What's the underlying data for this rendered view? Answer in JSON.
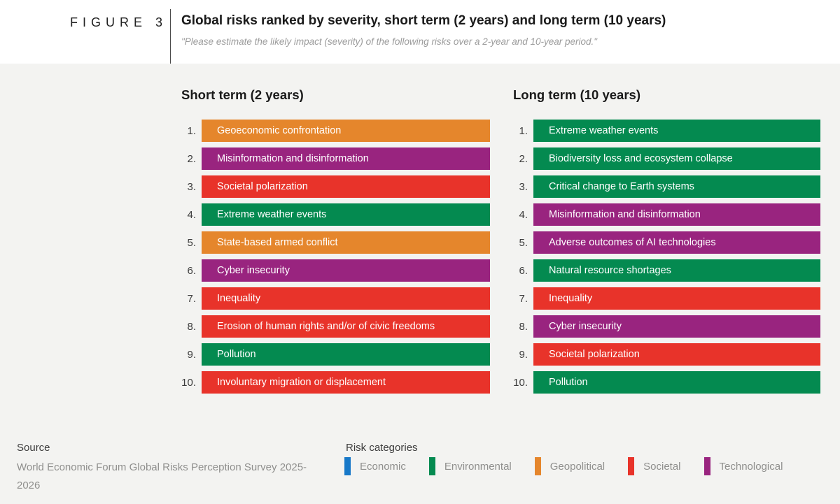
{
  "figure": {
    "label": "FIGURE 3",
    "title": "Global risks ranked by severity, short term (2 years) and long term (10 years)",
    "subtitle": "\"Please estimate the likely impact (severity) of the following risks over a 2-year and 10-year period.\""
  },
  "colors": {
    "economic": "#1778C8",
    "environmental": "#048A50",
    "geopolitical": "#E5862C",
    "societal": "#E8332A",
    "technological": "#99247F",
    "background": "#F3F3F1"
  },
  "chart_data": {
    "type": "bar",
    "title": "Global risks ranked by severity, short term (2 years) and long term (10 years)",
    "subtitle": "\"Please estimate the likely impact (severity) of the following risks over a 2-year and 10-year period.\"",
    "legend_position": "bottom",
    "columns": [
      {
        "header": "Short term (2 years)",
        "items": [
          {
            "rank": 1,
            "label": "Geoeconomic confrontation",
            "category": "geopolitical"
          },
          {
            "rank": 2,
            "label": "Misinformation and disinformation",
            "category": "technological"
          },
          {
            "rank": 3,
            "label": "Societal polarization",
            "category": "societal"
          },
          {
            "rank": 4,
            "label": "Extreme weather events",
            "category": "environmental"
          },
          {
            "rank": 5,
            "label": "State-based armed conflict",
            "category": "geopolitical"
          },
          {
            "rank": 6,
            "label": "Cyber insecurity",
            "category": "technological"
          },
          {
            "rank": 7,
            "label": "Inequality",
            "category": "societal"
          },
          {
            "rank": 8,
            "label": "Erosion of human rights and/or of civic freedoms",
            "category": "societal"
          },
          {
            "rank": 9,
            "label": "Pollution",
            "category": "environmental"
          },
          {
            "rank": 10,
            "label": "Involuntary migration or displacement",
            "category": "societal"
          }
        ]
      },
      {
        "header": "Long term (10 years)",
        "items": [
          {
            "rank": 1,
            "label": "Extreme weather events",
            "category": "environmental"
          },
          {
            "rank": 2,
            "label": "Biodiversity loss and ecosystem collapse",
            "category": "environmental"
          },
          {
            "rank": 3,
            "label": "Critical change to Earth systems",
            "category": "environmental"
          },
          {
            "rank": 4,
            "label": "Misinformation and disinformation",
            "category": "technological"
          },
          {
            "rank": 5,
            "label": "Adverse outcomes of AI technologies",
            "category": "technological"
          },
          {
            "rank": 6,
            "label": "Natural resource shortages",
            "category": "environmental"
          },
          {
            "rank": 7,
            "label": "Inequality",
            "category": "societal"
          },
          {
            "rank": 8,
            "label": "Cyber insecurity",
            "category": "technological"
          },
          {
            "rank": 9,
            "label": "Societal polarization",
            "category": "societal"
          },
          {
            "rank": 10,
            "label": "Pollution",
            "category": "environmental"
          }
        ]
      }
    ],
    "legend": {
      "title": "Risk categories",
      "entries": [
        {
          "label": "Economic",
          "category": "economic"
        },
        {
          "label": "Environmental",
          "category": "environmental"
        },
        {
          "label": "Geopolitical",
          "category": "geopolitical"
        },
        {
          "label": "Societal",
          "category": "societal"
        },
        {
          "label": "Technological",
          "category": "technological"
        }
      ]
    }
  },
  "footer": {
    "source_label": "Source",
    "source_text": "World Economic Forum Global Risks Perception Survey 2025-2026"
  }
}
